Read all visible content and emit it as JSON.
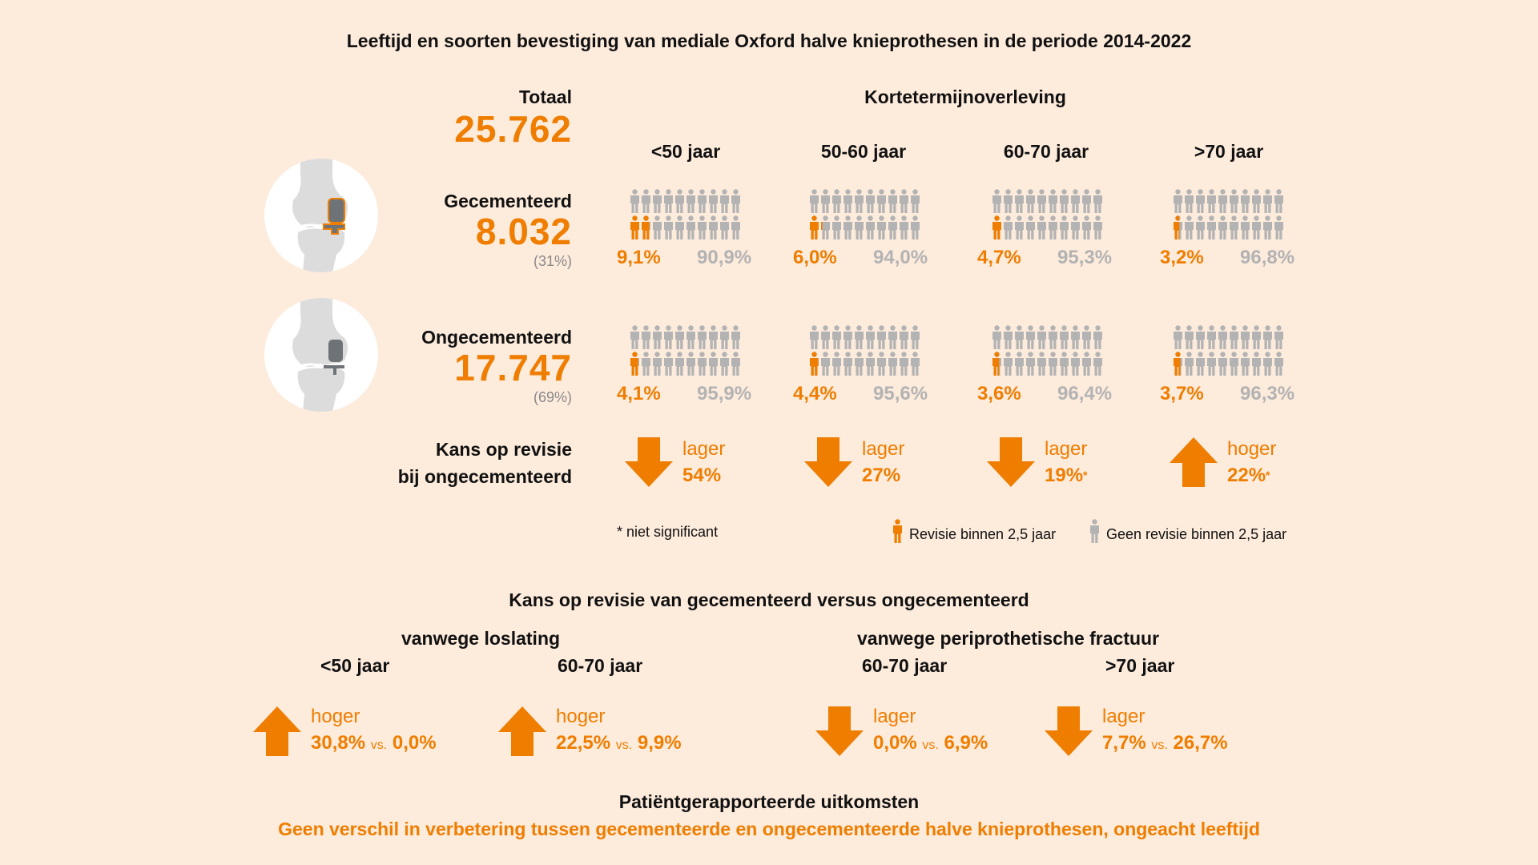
{
  "title": "Leeftijd en soorten bevestiging van mediale Oxford halve knieprothesen in de periode 2014-2022",
  "total": {
    "label": "Totaal",
    "value": "25.762"
  },
  "survival_header": "Kortetermijnoverleving",
  "age_groups": [
    "<50 jaar",
    "50-60 jaar",
    "60-70 jaar",
    ">70 jaar"
  ],
  "colors": {
    "accent": "#ef7d00",
    "gray_figure": "#b3b3b3",
    "background": "#fdebdc"
  },
  "rows": [
    {
      "label": "Gecementeerd",
      "value": "8.032",
      "share": "(31%)",
      "icon": "knee-cemented-icon",
      "groups": [
        {
          "revision": "9,1%",
          "no_revision": "90,9%",
          "revision_pct": 9.1
        },
        {
          "revision": "6,0%",
          "no_revision": "94,0%",
          "revision_pct": 6.0
        },
        {
          "revision": "4,7%",
          "no_revision": "95,3%",
          "revision_pct": 4.7
        },
        {
          "revision": "3,2%",
          "no_revision": "96,8%",
          "revision_pct": 3.2
        }
      ]
    },
    {
      "label": "Ongecementeerd",
      "value": "17.747",
      "share": "(69%)",
      "icon": "knee-uncemented-icon",
      "groups": [
        {
          "revision": "4,1%",
          "no_revision": "95,9%",
          "revision_pct": 4.1
        },
        {
          "revision": "4,4%",
          "no_revision": "95,6%",
          "revision_pct": 4.4
        },
        {
          "revision": "3,6%",
          "no_revision": "96,4%",
          "revision_pct": 3.6
        },
        {
          "revision": "3,7%",
          "no_revision": "96,3%",
          "revision_pct": 3.7
        }
      ]
    }
  ],
  "revision_chance": {
    "label_line1": "Kans op revisie",
    "label_line2": "bij ongecementeerd",
    "items": [
      {
        "direction": "down",
        "word": "lager",
        "value": "54%",
        "note": ""
      },
      {
        "direction": "down",
        "word": "lager",
        "value": "27%",
        "note": ""
      },
      {
        "direction": "down",
        "word": "lager",
        "value": "19%",
        "note": "*"
      },
      {
        "direction": "up",
        "word": "hoger",
        "value": "22%",
        "note": "*"
      }
    ]
  },
  "footnote": "* niet significant",
  "legend": {
    "revision": "Revisie binnen 2,5 jaar",
    "no_revision": "Geen revisie binnen 2,5 jaar"
  },
  "comparison": {
    "title": "Kans op revisie van gecementeerd versus ongecementeerd",
    "sections": [
      {
        "title": "vanwege loslating",
        "items": [
          {
            "age": "<50 jaar",
            "direction": "up",
            "word": "hoger",
            "a": "30,8%",
            "vs": "vs.",
            "b": "0,0%"
          },
          {
            "age": "60-70 jaar",
            "direction": "up",
            "word": "hoger",
            "a": "22,5%",
            "vs": "vs.",
            "b": "9,9%"
          }
        ]
      },
      {
        "title": "vanwege periprothetische fractuur",
        "items": [
          {
            "age": "60-70 jaar",
            "direction": "down",
            "word": "lager",
            "a": "0,0%",
            "vs": "vs.",
            "b": "6,9%"
          },
          {
            "age": ">70 jaar",
            "direction": "down",
            "word": "lager",
            "a": "7,7%",
            "vs": "vs.",
            "b": "26,7%"
          }
        ]
      }
    ]
  },
  "prom": {
    "title": "Patiëntgerapporteerde uitkomsten",
    "text": "Geen verschil in verbetering tussen gecementeerde en ongecementeerde halve knieprothesen, ongeacht leeftijd"
  }
}
